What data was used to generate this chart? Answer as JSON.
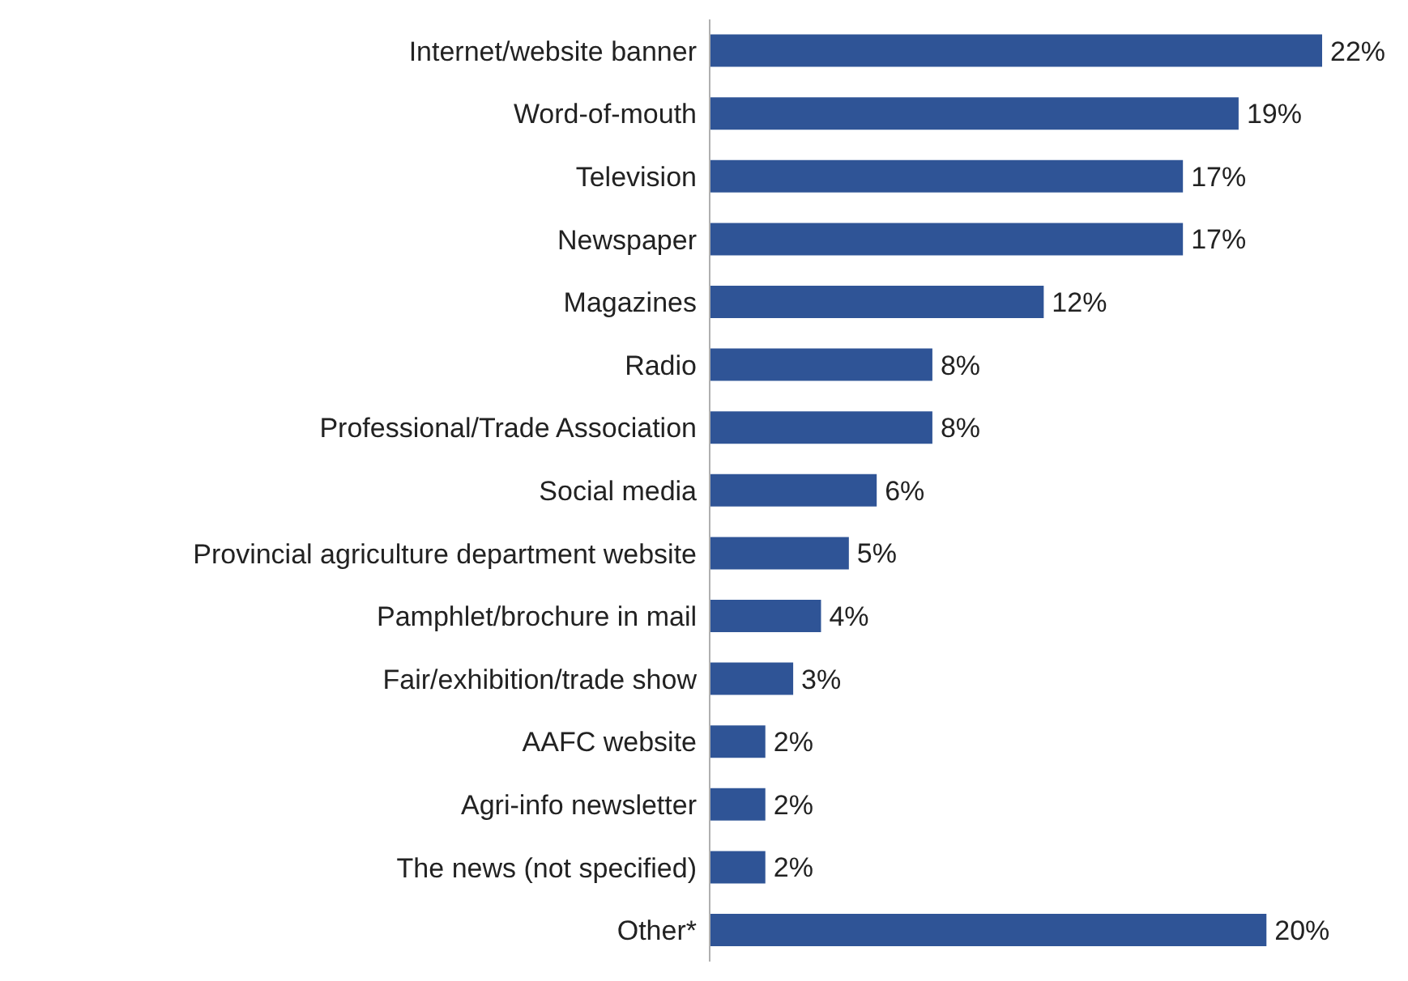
{
  "chart_data": {
    "type": "bar",
    "orientation": "horizontal",
    "tick_labels": "y",
    "categories": [
      "Internet/website banner",
      "Word-of-mouth",
      "Television",
      "Newspaper",
      "Magazines",
      "Radio",
      "Professional/Trade Association",
      "Social media",
      "Provincial agriculture department website",
      "Pamphlet/brochure in mail",
      "Fair/exhibition/trade show",
      "AAFC website",
      "Agri-info newsletter",
      "The news (not specified)",
      "Other*"
    ],
    "values": [
      22,
      19,
      17,
      17,
      12,
      8,
      8,
      6,
      5,
      4,
      3,
      2,
      2,
      2,
      20
    ],
    "value_labels": [
      "22%",
      "19%",
      "17%",
      "17%",
      "12%",
      "8%",
      "8%",
      "6%",
      "5%",
      "4%",
      "3%",
      "2%",
      "2%",
      "2%",
      "20%"
    ],
    "color": "#2f5496"
  }
}
